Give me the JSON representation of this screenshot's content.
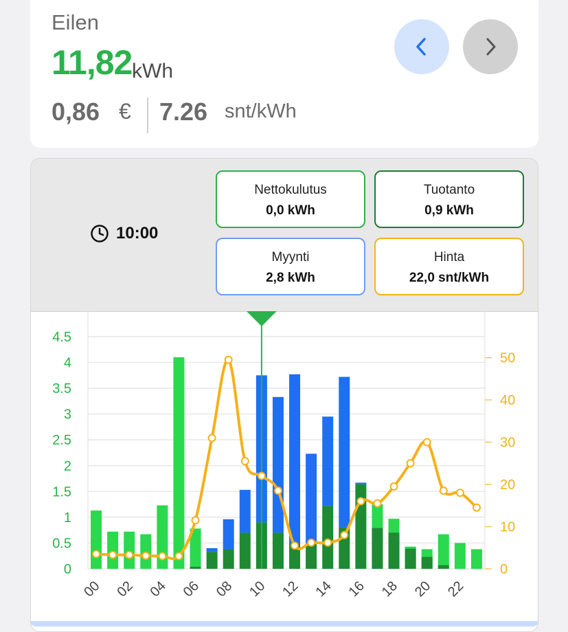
{
  "summary": {
    "day_label": "Eilen",
    "energy_value": "11,82",
    "energy_unit": "kWh",
    "cost_value": "0,86",
    "cost_unit": "€",
    "price_value": "7.26",
    "price_unit": "snt/kWh",
    "prev_icon": "chevron-left-icon",
    "next_icon": "chevron-right-icon"
  },
  "info": {
    "time": "10:00",
    "clock_icon": "clock-icon",
    "net_label": "Nettokulutus",
    "net_value": "0,0 kWh",
    "prod_label": "Tuotanto",
    "prod_value": "0,9 kWh",
    "sale_label": "Myynti",
    "sale_value": "2,8 kWh",
    "price_label": "Hinta",
    "price_value": "22,0 snt/kWh"
  },
  "colors": {
    "net": "#2ad94d",
    "production": "#1e8a33",
    "sale": "#1f6ff2",
    "price": "#f5b01a",
    "left_axis": "#2bb24c",
    "right_axis": "#f0b41a"
  },
  "chart_data": {
    "type": "bar",
    "hours": [
      0,
      1,
      2,
      3,
      4,
      5,
      6,
      7,
      8,
      9,
      10,
      11,
      12,
      13,
      14,
      15,
      16,
      17,
      18,
      19,
      20,
      21,
      22,
      23
    ],
    "x_tick_labels": [
      "00",
      "02",
      "04",
      "06",
      "08",
      "10",
      "12",
      "14",
      "16",
      "18",
      "20",
      "22"
    ],
    "y_left_ticks": [
      "0",
      "0.5",
      "1",
      "1.5",
      "2",
      "2.5",
      "3",
      "3.5",
      "4",
      "4.5"
    ],
    "y_left_range": [
      0,
      4.5
    ],
    "y_right_ticks": [
      "0",
      "10",
      "20",
      "30",
      "40",
      "50"
    ],
    "y_right_range": [
      0,
      55
    ],
    "series": [
      {
        "key": "net",
        "values": [
          1.13,
          0.72,
          0.72,
          0.67,
          1.23,
          4.1,
          0.78,
          0,
          0,
          0,
          0,
          0,
          0,
          0,
          0,
          0,
          0,
          1.25,
          0.97,
          0.43,
          0.38,
          0.67,
          0.5,
          0.38
        ]
      },
      {
        "key": "production",
        "values": [
          0,
          0,
          0,
          0,
          0,
          0,
          0.04,
          0.33,
          0.38,
          0.7,
          0.9,
          0.7,
          0.5,
          0.5,
          1.22,
          0.8,
          1.64,
          0.79,
          0.7,
          0.39,
          0.23,
          0.07,
          0,
          0
        ]
      },
      {
        "key": "sale",
        "values": [
          0,
          0,
          0,
          0,
          0,
          0,
          0,
          0.07,
          0.58,
          0.83,
          2.85,
          2.63,
          3.27,
          1.73,
          1.73,
          2.92,
          0.03,
          0,
          0,
          0,
          0,
          0,
          0,
          0
        ]
      },
      {
        "key": "price",
        "values": [
          3.5,
          3.3,
          3.3,
          3.1,
          3.0,
          3.0,
          11.5,
          31.0,
          49.5,
          25.5,
          22.0,
          18.5,
          5.5,
          6.2,
          6.2,
          8.0,
          16.0,
          15.5,
          19.5,
          25.0,
          30.0,
          18.5,
          18.0,
          14.5
        ]
      }
    ],
    "selected_hour": 10
  }
}
